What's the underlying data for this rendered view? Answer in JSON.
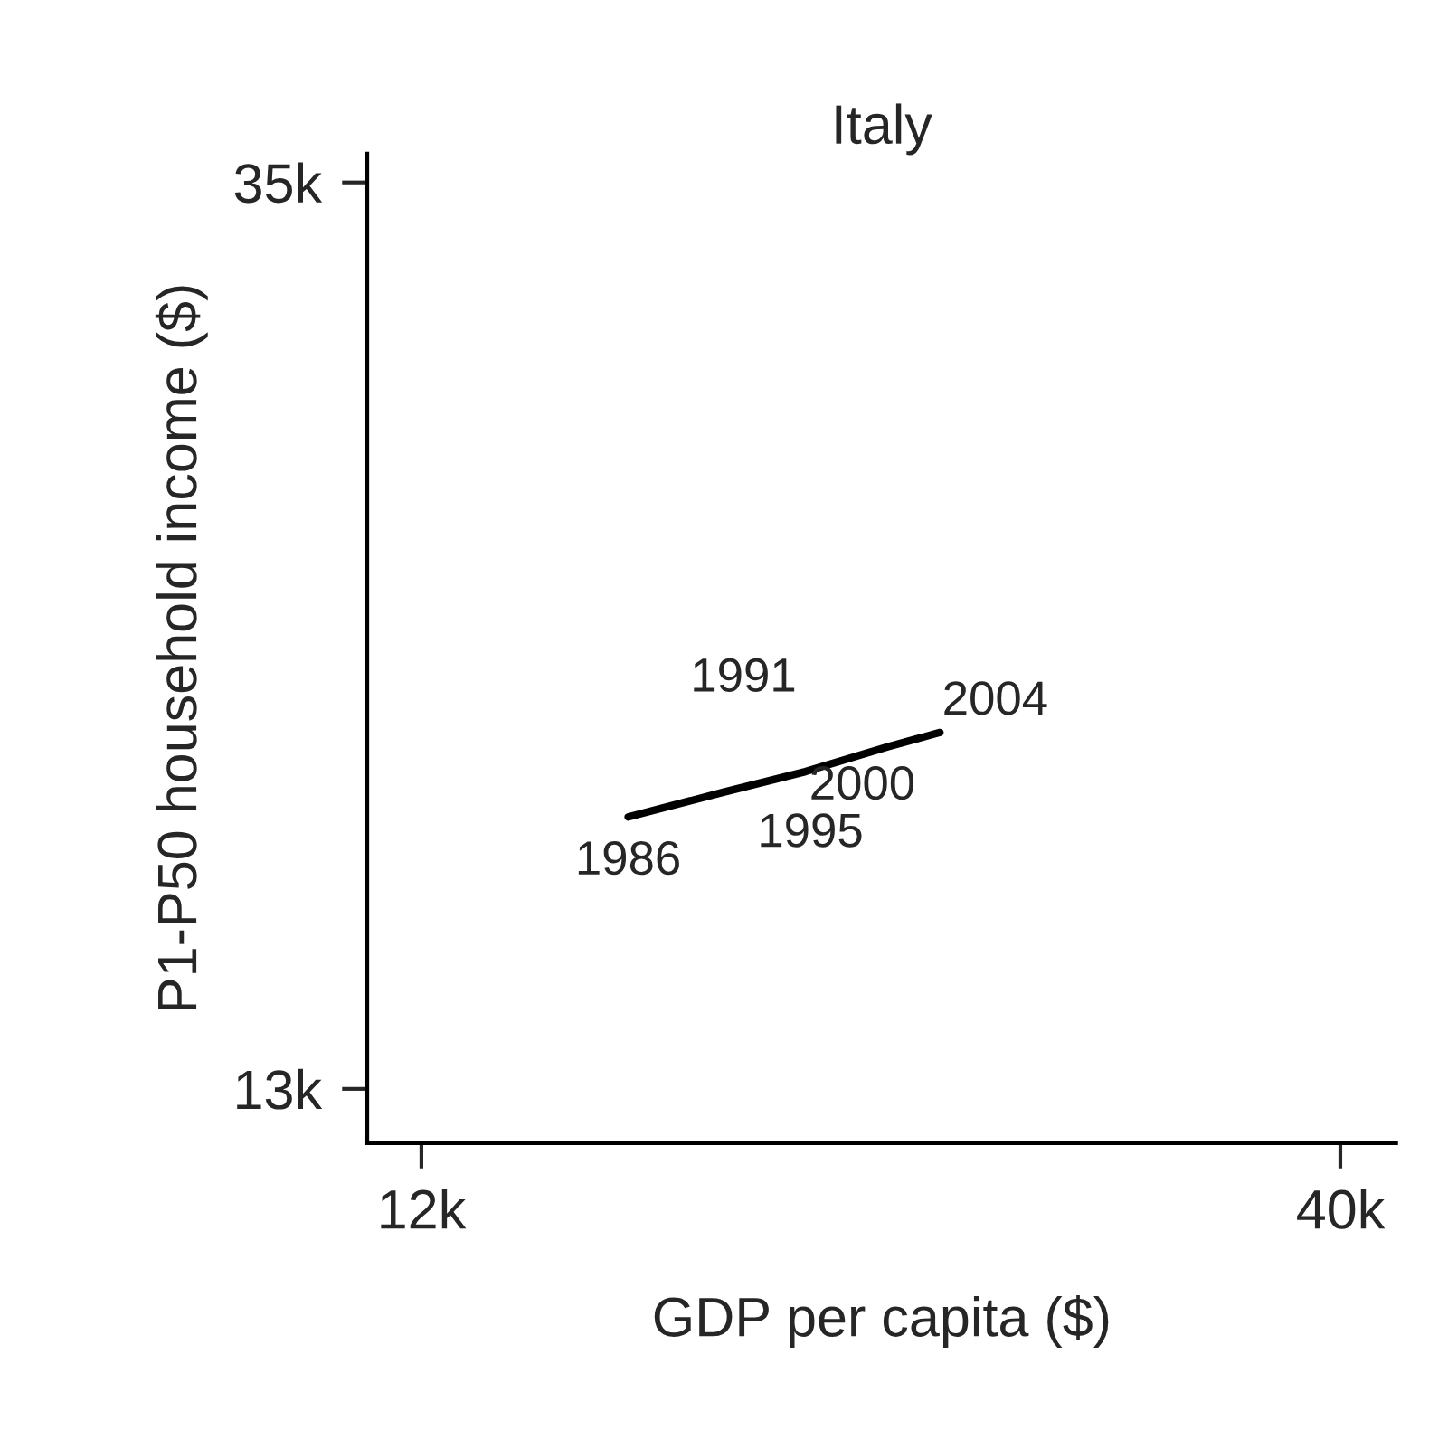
{
  "chart_data": {
    "type": "line",
    "title": "Italy",
    "xlabel": "GDP per capita ($)",
    "ylabel": "P1-P50 household income ($)",
    "series": [
      {
        "color": "#000000",
        "x": [
          18.3,
          21.2,
          23.7,
          26.2,
          27.8
        ],
        "values": [
          19.6,
          20.2,
          20.7,
          21.3,
          21.65
        ]
      }
    ],
    "annotations": [
      {
        "text": "1986",
        "x": 18.3,
        "y": 19.6
      },
      {
        "text": "1991",
        "x": 21.2,
        "y": 20.2
      },
      {
        "text": "1995",
        "x": 23.7,
        "y": 20.7
      },
      {
        "text": "2000",
        "x": 26.2,
        "y": 21.3
      },
      {
        "text": "2004",
        "x": 27.8,
        "y": 21.65
      }
    ],
    "xlim": [
      10.35,
      41.7
    ],
    "ylim": [
      11.68,
      35.7
    ],
    "xticks": [
      {
        "value": 12,
        "label": "12k"
      },
      {
        "value": 40,
        "label": "40k"
      }
    ],
    "yticks": [
      {
        "value": 13,
        "label": "13k"
      },
      {
        "value": 35,
        "label": "35k"
      }
    ],
    "grid": false,
    "legend": false,
    "marker": "none",
    "line_style": "solid"
  }
}
